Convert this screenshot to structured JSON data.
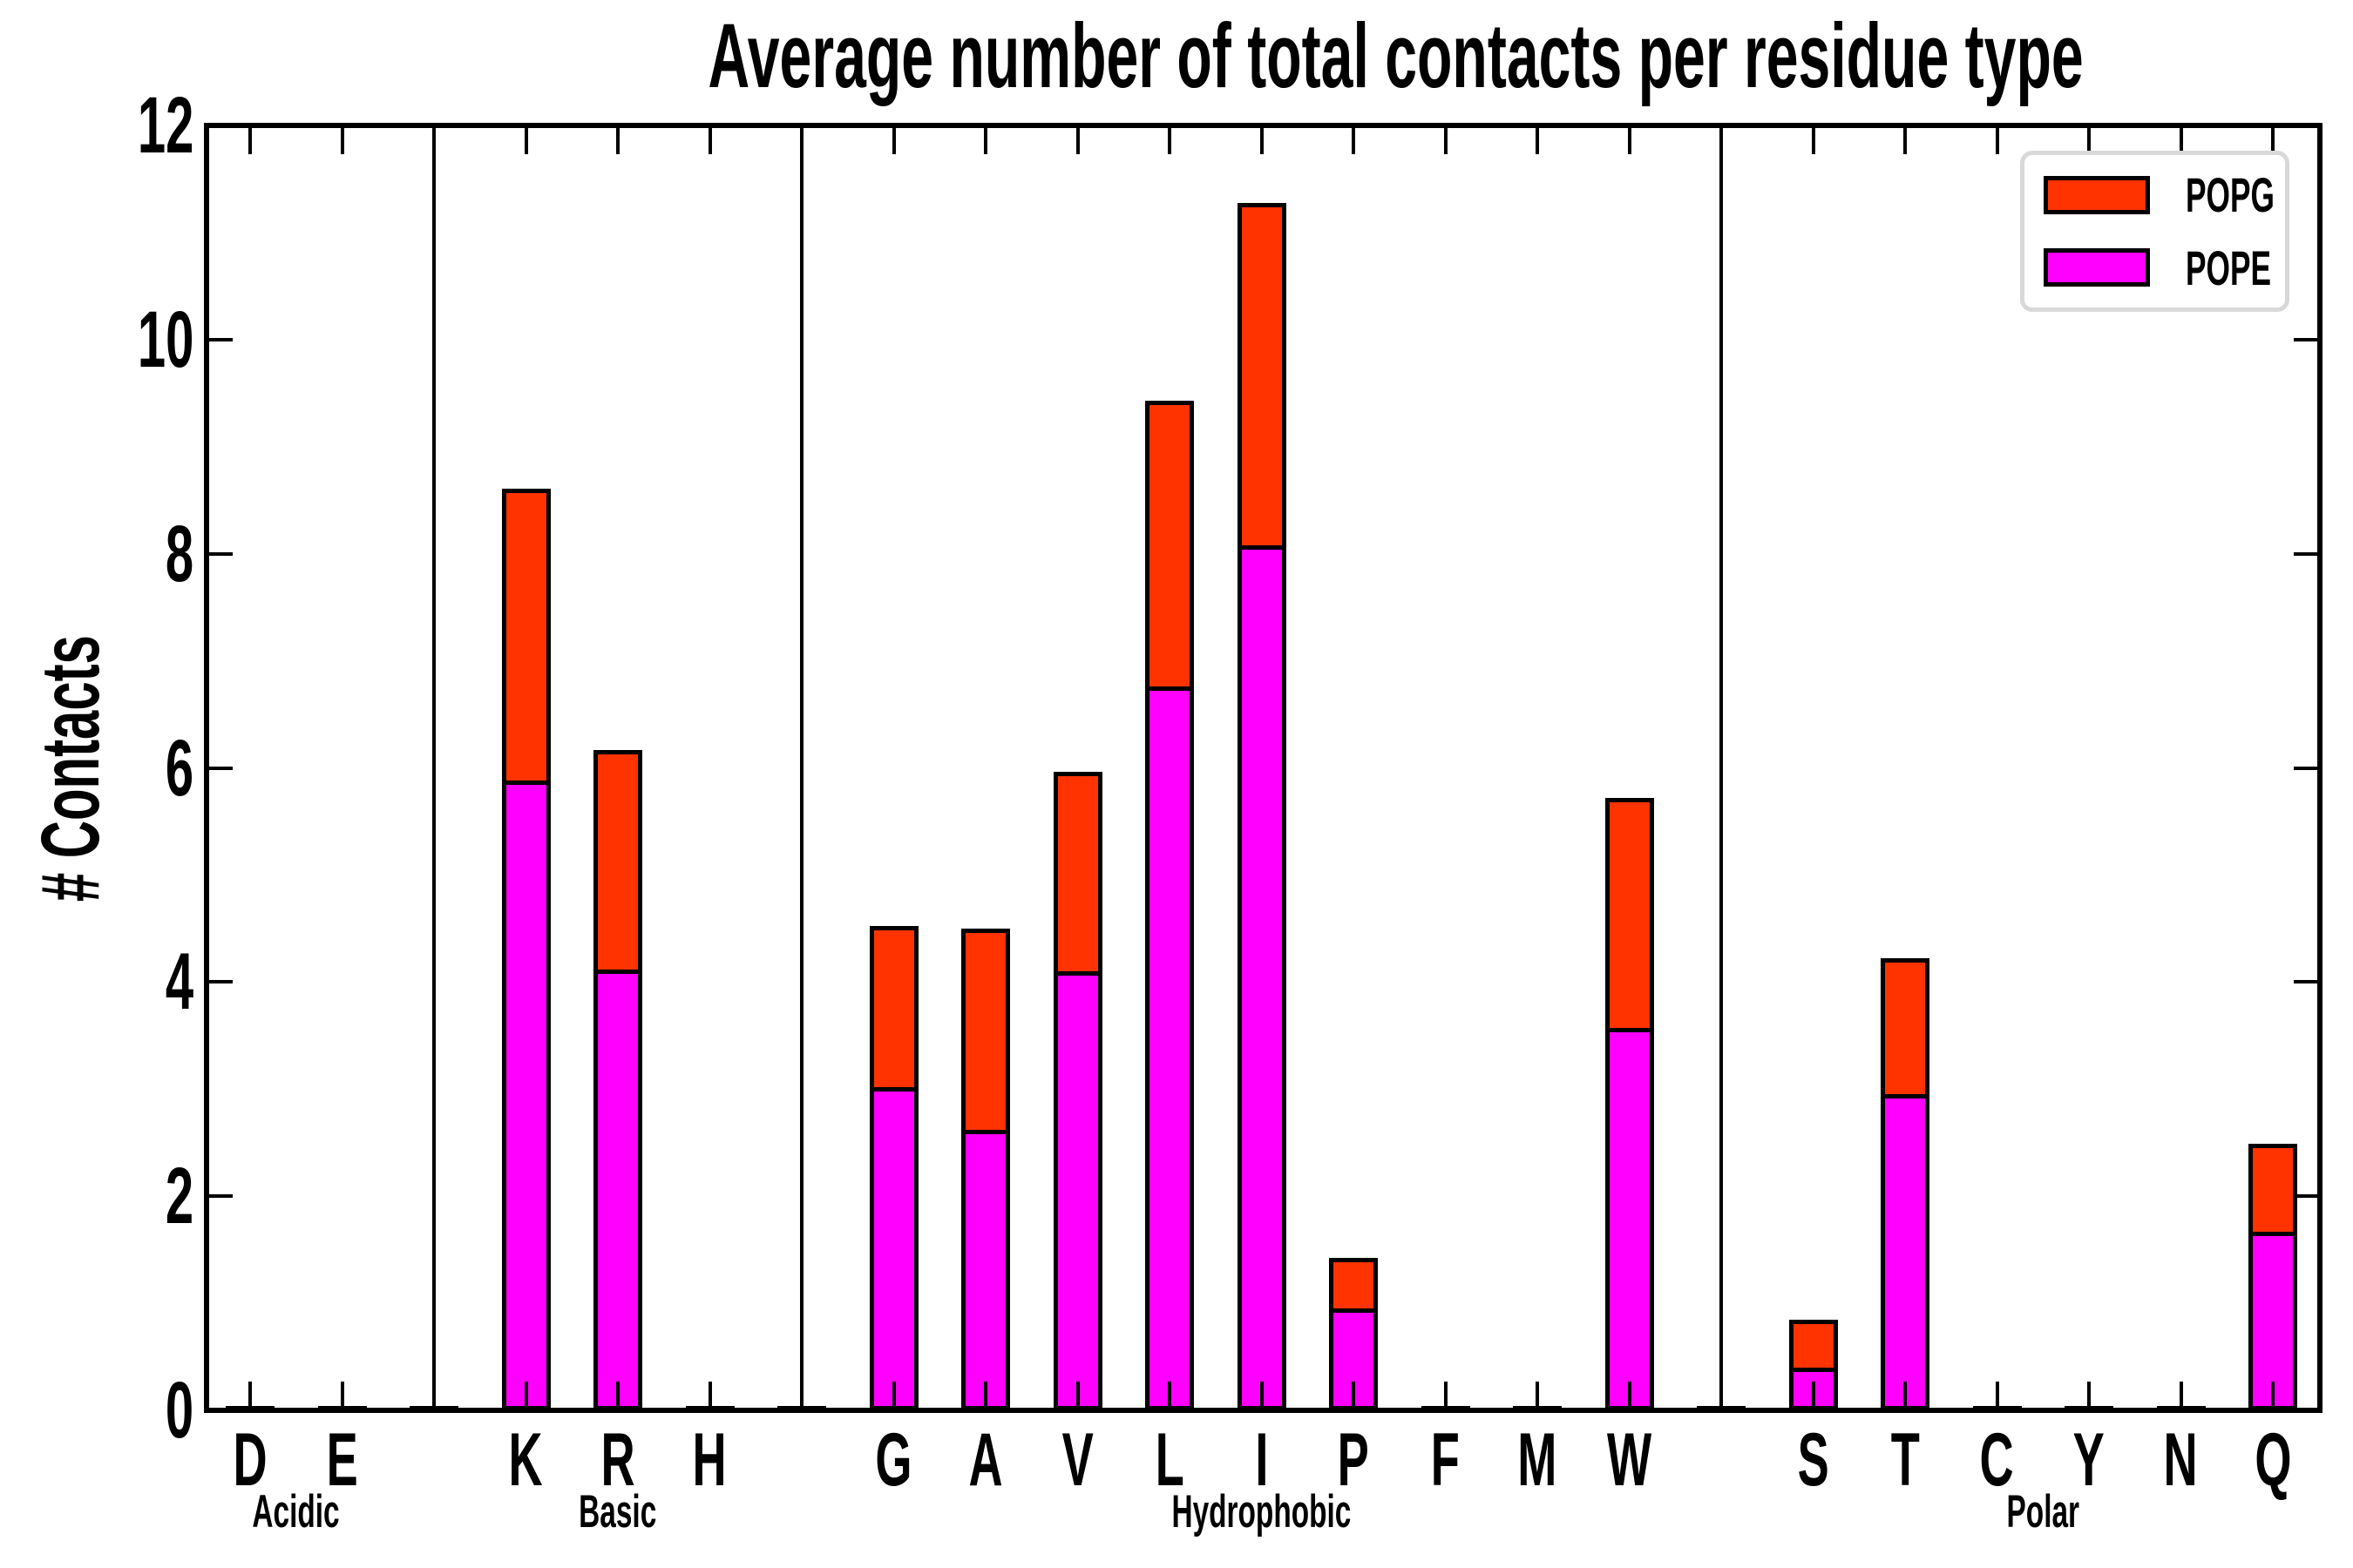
{
  "title": "Average number of total contacts per residue type",
  "y_axis": {
    "label": "# Contacts",
    "min": 0,
    "max": 12,
    "tick_step": 2
  },
  "legend": {
    "position": "upper right",
    "items": [
      {
        "label": "POPG",
        "color": "#ff3300"
      },
      {
        "label": "POPE",
        "color": "#ff00ff"
      }
    ]
  },
  "chart_data": {
    "type": "bar",
    "stacked": true,
    "title": "Average number of total contacts per residue type",
    "ylabel": "# Contacts",
    "ylim": [
      0,
      12
    ],
    "grid": false,
    "series_names": [
      "POPE",
      "POPG"
    ],
    "series_colors": {
      "POPE": "#ff00ff",
      "POPG": "#ff3300"
    },
    "stack_order_bottom_to_top": [
      "POPE",
      "POPG"
    ],
    "groups": [
      {
        "name": "Acidic",
        "bars": [
          {
            "label": "D",
            "POPE": 0.01,
            "POPG": 0.01
          },
          {
            "label": "E",
            "POPE": 0.01,
            "POPG": 0.01
          }
        ]
      },
      {
        "name": "Basic",
        "bars": [
          {
            "label": "K",
            "POPE": 5.88,
            "POPG": 2.73
          },
          {
            "label": "R",
            "POPE": 4.12,
            "POPG": 2.05
          },
          {
            "label": "H",
            "POPE": 0.01,
            "POPG": 0.01
          }
        ]
      },
      {
        "name": "Hydrophobic",
        "bars": [
          {
            "label": "G",
            "POPE": 3.02,
            "POPG": 1.5
          },
          {
            "label": "A",
            "POPE": 2.62,
            "POPG": 1.88
          },
          {
            "label": "V",
            "POPE": 4.1,
            "POPG": 1.86
          },
          {
            "label": "L",
            "POPE": 6.76,
            "POPG": 2.67
          },
          {
            "label": "I",
            "POPE": 8.08,
            "POPG": 3.2
          },
          {
            "label": "P",
            "POPE": 0.95,
            "POPG": 0.47
          },
          {
            "label": "F",
            "POPE": 0.01,
            "POPG": 0.01
          },
          {
            "label": "M",
            "POPE": 0.01,
            "POPG": 0.01
          },
          {
            "label": "W",
            "POPE": 3.57,
            "POPG": 2.15
          }
        ]
      },
      {
        "name": "Polar",
        "bars": [
          {
            "label": "S",
            "POPE": 0.4,
            "POPG": 0.45
          },
          {
            "label": "T",
            "POPE": 2.95,
            "POPG": 1.27
          },
          {
            "label": "C",
            "POPE": 0.01,
            "POPG": 0.01
          },
          {
            "label": "Y",
            "POPE": 0.01,
            "POPG": 0.01
          },
          {
            "label": "N",
            "POPE": 0.01,
            "POPG": 0.01
          },
          {
            "label": "Q",
            "POPE": 1.67,
            "POPG": 0.82
          }
        ]
      }
    ]
  }
}
